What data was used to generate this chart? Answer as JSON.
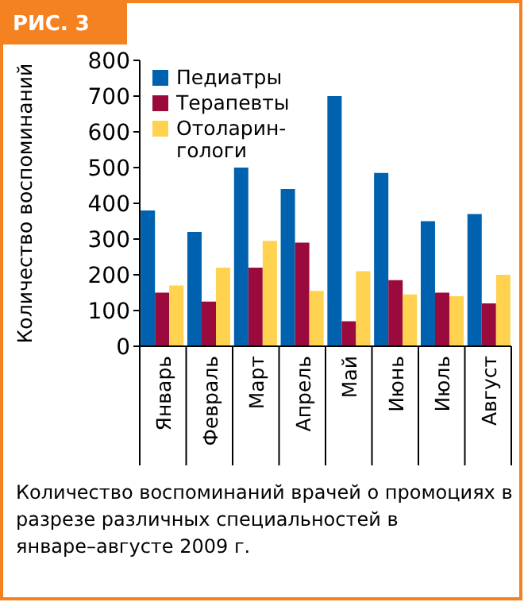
{
  "chart_data": {
    "type": "bar",
    "title": "РИС. 3",
    "ylabel": "Количество воспоминаний",
    "categories": [
      "Январь",
      "Февраль",
      "Март",
      "Апрель",
      "Май",
      "Июнь",
      "Июль",
      "Август"
    ],
    "series": [
      {
        "name": "Педиатры",
        "color": "#0062ae",
        "values": [
          380,
          320,
          500,
          440,
          700,
          485,
          350,
          370
        ]
      },
      {
        "name": "Терапевты",
        "color": "#9a0a3c",
        "values": [
          150,
          125,
          220,
          290,
          70,
          185,
          150,
          120
        ]
      },
      {
        "name": "Отоларин-гологи",
        "color": "#ffd24f",
        "values": [
          170,
          220,
          295,
          155,
          210,
          145,
          140,
          200
        ]
      }
    ],
    "ylim": [
      0,
      800
    ],
    "yticks": [
      0,
      100,
      200,
      300,
      400,
      500,
      600,
      700,
      800
    ],
    "grid": false,
    "legend": "top left",
    "annotations": [
      "Количество воспоминаний врачей о промоциях в разрезе различных специальностей в январе–августе 2009 г."
    ]
  }
}
